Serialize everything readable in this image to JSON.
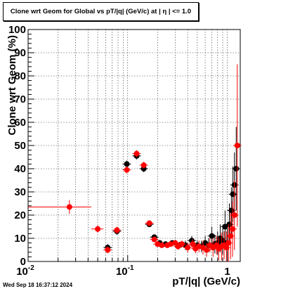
{
  "chart_data": {
    "type": "scatter",
    "title": "Clone wrt Geom for Global vs pT/|q| (GeV/c) at |  η | <= 1.0",
    "xlabel": "pT/|q| (GeV/c)",
    "ylabel": "Clone wrt Geom (%)",
    "x_scale": "log",
    "xlim": [
      0.01,
      1.35
    ],
    "ylim": [
      0,
      100
    ],
    "grid": true,
    "x_tick_labels": [
      "10^-2",
      "10^-1",
      "1"
    ],
    "y_tick_labels": [
      "0",
      "10",
      "20",
      "30",
      "40",
      "50",
      "60",
      "70",
      "80",
      "90",
      "100"
    ],
    "series": [
      {
        "color": "#000000",
        "points": [
          {
            "x": 0.063,
            "y": 6,
            "ey": 1.5
          },
          {
            "x": 0.078,
            "y": 13,
            "ey": 1.5
          },
          {
            "x": 0.098,
            "y": 42,
            "ey": 1.5
          },
          {
            "x": 0.123,
            "y": 45.5,
            "ey": 1.5
          },
          {
            "x": 0.145,
            "y": 40,
            "ey": 1.5
          },
          {
            "x": 0.165,
            "y": 16,
            "ey": 1
          },
          {
            "x": 0.185,
            "y": 10.5,
            "ey": 1
          },
          {
            "x": 0.21,
            "y": 8,
            "ey": 1
          },
          {
            "x": 0.24,
            "y": 7.5,
            "ey": 1
          },
          {
            "x": 0.28,
            "y": 8,
            "ey": 1
          },
          {
            "x": 0.33,
            "y": 7,
            "ey": 1.5
          },
          {
            "x": 0.38,
            "y": 7,
            "ey": 2
          },
          {
            "x": 0.44,
            "y": 9,
            "ey": 2
          },
          {
            "x": 0.5,
            "y": 7,
            "ey": 2
          },
          {
            "x": 0.55,
            "y": 6.5,
            "ey": 2.5
          },
          {
            "x": 0.6,
            "y": 8,
            "ey": 3
          },
          {
            "x": 0.65,
            "y": 7,
            "ey": 3
          },
          {
            "x": 0.7,
            "y": 11,
            "ey": 4
          },
          {
            "x": 0.75,
            "y": 7.5,
            "ey": 4
          },
          {
            "x": 0.8,
            "y": 8,
            "ey": 5
          },
          {
            "x": 0.85,
            "y": 10,
            "ey": 6
          },
          {
            "x": 0.9,
            "y": 9,
            "ey": 6
          },
          {
            "x": 0.95,
            "y": 15,
            "ey": 7
          },
          {
            "x": 1.0,
            "y": 8,
            "ey": 7
          },
          {
            "x": 1.05,
            "y": 16,
            "ey": 9
          },
          {
            "x": 1.1,
            "y": 22,
            "ey": 10
          },
          {
            "x": 1.14,
            "y": 29,
            "ey": 12
          },
          {
            "x": 1.18,
            "y": 33,
            "ey": 14
          },
          {
            "x": 1.23,
            "y": 40,
            "ey": 18
          }
        ]
      },
      {
        "color": "#ff0000",
        "points": [
          {
            "x": 0.026,
            "y": 23.5,
            "ey": 3,
            "xlo": 0.01,
            "xhi": 0.043
          },
          {
            "x": 0.05,
            "y": 14,
            "ey": 1.5,
            "xlo": 0.043,
            "xhi": 0.057
          },
          {
            "x": 0.063,
            "y": 5,
            "ey": 1.5
          },
          {
            "x": 0.078,
            "y": 13.5,
            "ey": 1.5
          },
          {
            "x": 0.098,
            "y": 39.5,
            "ey": 1.5
          },
          {
            "x": 0.123,
            "y": 46.5,
            "ey": 1.5
          },
          {
            "x": 0.145,
            "y": 41.5,
            "ey": 1.5
          },
          {
            "x": 0.165,
            "y": 16.5,
            "ey": 1
          },
          {
            "x": 0.185,
            "y": 9.5,
            "ey": 1
          },
          {
            "x": 0.2,
            "y": 7.5,
            "ey": 1
          },
          {
            "x": 0.22,
            "y": 7,
            "ey": 1
          },
          {
            "x": 0.25,
            "y": 7,
            "ey": 1
          },
          {
            "x": 0.27,
            "y": 7.5,
            "ey": 1
          },
          {
            "x": 0.3,
            "y": 8,
            "ey": 1
          },
          {
            "x": 0.32,
            "y": 6.5,
            "ey": 1.5
          },
          {
            "x": 0.35,
            "y": 7.5,
            "ey": 1.5
          },
          {
            "x": 0.4,
            "y": 6,
            "ey": 2
          },
          {
            "x": 0.45,
            "y": 7.5,
            "ey": 2
          },
          {
            "x": 0.48,
            "y": 5.5,
            "ey": 2
          },
          {
            "x": 0.52,
            "y": 6.5,
            "ey": 2.5
          },
          {
            "x": 0.57,
            "y": 6,
            "ey": 3
          },
          {
            "x": 0.62,
            "y": 5,
            "ey": 3
          },
          {
            "x": 0.67,
            "y": 7,
            "ey": 3
          },
          {
            "x": 0.72,
            "y": 6,
            "ey": 4
          },
          {
            "x": 0.78,
            "y": 7,
            "ey": 4
          },
          {
            "x": 0.82,
            "y": 5.5,
            "ey": 5
          },
          {
            "x": 0.88,
            "y": 6.5,
            "ey": 6
          },
          {
            "x": 0.93,
            "y": 7,
            "ey": 6
          },
          {
            "x": 0.98,
            "y": 6,
            "ey": 7
          },
          {
            "x": 1.03,
            "y": 8,
            "ey": 8
          },
          {
            "x": 1.08,
            "y": 11,
            "ey": 10
          },
          {
            "x": 1.13,
            "y": 14,
            "ey": 12
          },
          {
            "x": 1.18,
            "y": 20,
            "ey": 15
          },
          {
            "x": 1.26,
            "y": 50,
            "ey": 35
          }
        ]
      }
    ]
  },
  "footer": {
    "datestamp": "Wed Sep 18 16:37:12 2024"
  }
}
